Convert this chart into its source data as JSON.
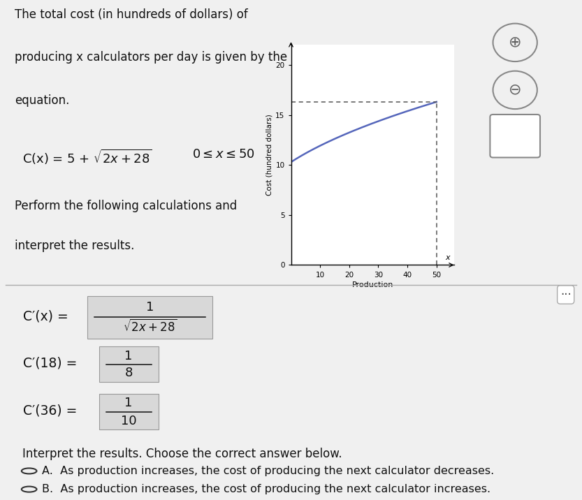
{
  "bg_color_top": "#f0f0f0",
  "bg_color_bot": "#f5f5f5",
  "white_color": "#ffffff",
  "text_color": "#111111",
  "title_line1": "The total cost (in hundreds of dollars) of",
  "title_line2": "producing x calculators per day is given by the",
  "title_line3": "equation.",
  "perform_line1": "Perform the following calculations and",
  "perform_line2": "interpret the results.",
  "interpret_text": "Interpret the results. Choose the correct answer below.",
  "choice_A": "As production increases, the cost of producing the next calculator decreases.",
  "choice_B": "As production increases, the cost of producing the next calculator increases.",
  "graph_ylabel": "Cost (hundred dollars)",
  "graph_xlabel": "Production",
  "graph_yticks": [
    0,
    5,
    10,
    15,
    20
  ],
  "graph_xticks": [
    10,
    20,
    30,
    40,
    50
  ],
  "graph_xlim": [
    0,
    56
  ],
  "graph_ylim": [
    0,
    22
  ],
  "curve_color": "#5566bb",
  "dashed_color": "#555555",
  "box_fill": "#d8d8d8",
  "box_edge": "#999999"
}
